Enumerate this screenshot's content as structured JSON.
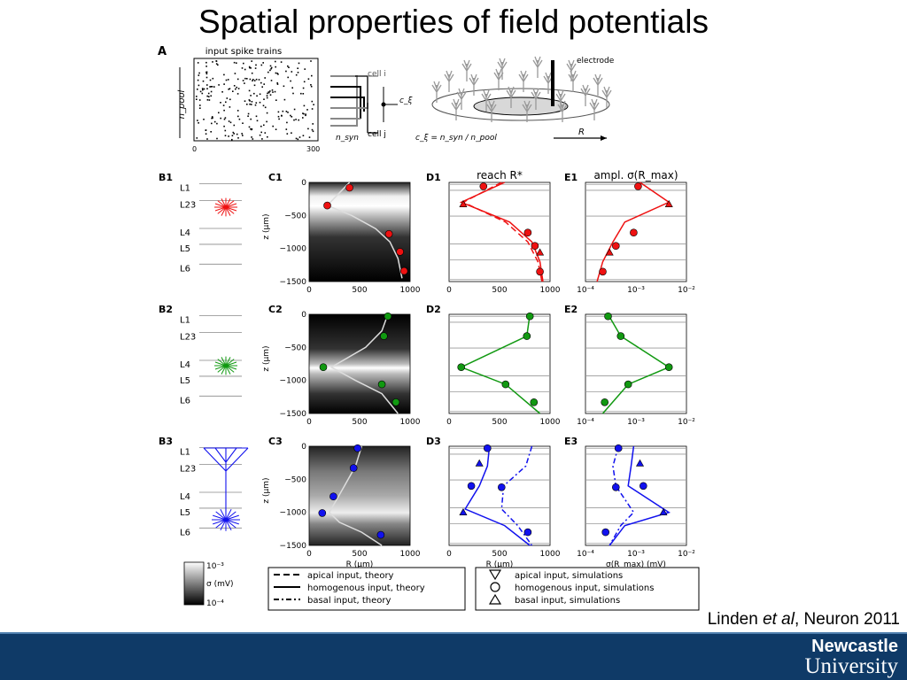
{
  "slide": {
    "title": "Spatial properties of field potentials",
    "citation_prefix": "Linden ",
    "citation_em": "et al",
    "citation_suffix": ", Neuron 2011"
  },
  "logo": {
    "line1": "Newcastle",
    "line2": "University"
  },
  "colors": {
    "row1": "#ee1111",
    "row2": "#119911",
    "row3": "#1111ee",
    "footer": "#0f3a67"
  },
  "panel_a": {
    "label": "A",
    "raster_title": "input spike trains",
    "axis_label": "n_pool",
    "tick_start": "0",
    "tick_end": "300",
    "cell_i": "cell i",
    "cell_j": "cell j",
    "n_syn": "n_syn",
    "c_xi": "c_ξ",
    "formula": "c_ξ = n_syn / n_pool",
    "electrode": "electrode",
    "r_label": "R"
  },
  "panel_b": {
    "labels": [
      "B1",
      "B2",
      "B3"
    ],
    "layers": [
      "L1",
      "L23",
      "L4",
      "L5",
      "L6"
    ]
  },
  "panel_c": {
    "labels": [
      "C1",
      "C2",
      "C3"
    ],
    "y_axis_label": "z (μm)",
    "y_ticks": [
      "0",
      "−500",
      "−1000",
      "−1500"
    ],
    "x_ticks": [
      "0",
      "500",
      "1000"
    ],
    "x_axis_label": "R (μm)"
  },
  "panel_d": {
    "labels": [
      "D1",
      "D2",
      "D3"
    ],
    "title": "reach R*",
    "x_ticks": [
      "0",
      "500",
      "1000"
    ],
    "x_axis_label": "R (μm)"
  },
  "panel_e": {
    "labels": [
      "E1",
      "E2",
      "E3"
    ],
    "title": "ampl. σ(R_max)",
    "x_ticks": [
      "10⁻⁴",
      "10⁻³",
      "10⁻²"
    ],
    "x_axis_label": "σ(R_max) (mV)"
  },
  "colorbar": {
    "top": "10⁻³",
    "label": "σ (mV)",
    "bottom": "10⁻⁴"
  },
  "legend": {
    "theory": [
      "apical input, theory",
      "homogenous input, theory",
      "basal input, theory"
    ],
    "simulations": [
      "apical input, simulations",
      "homogenous input, simulations",
      "basal input, simulations"
    ]
  },
  "chart_data": [
    {
      "type": "line",
      "panel": "C1",
      "xlabel": "",
      "ylabel": "z (μm)",
      "xlim": [
        0,
        1000
      ],
      "ylim": [
        -1500,
        0
      ],
      "series": [
        {
          "x": [
            400,
            180,
            420,
            660,
            800,
            880,
            920
          ],
          "y": [
            0,
            -350,
            -500,
            -700,
            -900,
            -1150,
            -1450
          ]
        }
      ],
      "points": {
        "x": [
          400,
          180,
          790,
          900,
          940
        ],
        "y": [
          -80,
          -350,
          -780,
          -1050,
          -1340
        ]
      }
    },
    {
      "type": "line",
      "panel": "C2",
      "xlabel": "",
      "ylabel": "z (μm)",
      "xlim": [
        0,
        1000
      ],
      "ylim": [
        -1500,
        0
      ],
      "series": [
        {
          "x": [
            780,
            720,
            560,
            220,
            460,
            720,
            880
          ],
          "y": [
            0,
            -250,
            -500,
            -800,
            -1000,
            -1200,
            -1500
          ]
        }
      ],
      "points": {
        "x": [
          780,
          740,
          140,
          720,
          860
        ],
        "y": [
          -30,
          -330,
          -800,
          -1060,
          -1330
        ]
      }
    },
    {
      "type": "line",
      "panel": "C3",
      "xlabel": "R (μm)",
      "ylabel": "z (μm)",
      "xlim": [
        0,
        1000
      ],
      "ylim": [
        -1500,
        0
      ],
      "series": [
        {
          "x": [
            520,
            460,
            350,
            200,
            300,
            520,
            720
          ],
          "y": [
            0,
            -300,
            -600,
            -1000,
            -1150,
            -1300,
            -1500
          ]
        }
      ],
      "points": {
        "x": [
          480,
          440,
          240,
          130,
          710
        ],
        "y": [
          -30,
          -330,
          -760,
          -1010,
          -1340
        ]
      }
    },
    {
      "type": "line",
      "panel": "D1",
      "title": "reach R*",
      "xlim": [
        0,
        1000
      ],
      "ylim": [
        -1500,
        0
      ],
      "series": [
        {
          "x": [
            550,
            120,
            600,
            820,
            900,
            930
          ],
          "y": [
            0,
            -300,
            -600,
            -900,
            -1200,
            -1500
          ]
        },
        {
          "x": [
            520,
            140,
            560,
            780,
            880,
            920
          ],
          "y": [
            0,
            -300,
            -600,
            -900,
            -1200,
            -1500
          ]
        }
      ],
      "points": {
        "x": [
          340,
          140,
          780,
          850,
          900,
          900
        ],
        "y": [
          -60,
          -330,
          -760,
          -960,
          -1060,
          -1350
        ]
      }
    },
    {
      "type": "line",
      "panel": "D2",
      "xlim": [
        0,
        1000
      ],
      "ylim": [
        -1500,
        0
      ],
      "series": [
        {
          "x": [
            800,
            770,
            120,
            560,
            900
          ],
          "y": [
            0,
            -330,
            -800,
            -1060,
            -1500
          ]
        }
      ],
      "points": {
        "x": [
          800,
          770,
          120,
          560,
          840
        ],
        "y": [
          -30,
          -330,
          -800,
          -1060,
          -1330
        ]
      }
    },
    {
      "type": "line",
      "panel": "D3",
      "xlabel": "R (μm)",
      "xlim": [
        0,
        1000
      ],
      "ylim": [
        -1500,
        0
      ],
      "series": [
        {
          "x": [
            400,
            380,
            300,
            160,
            550,
            800
          ],
          "y": [
            0,
            -300,
            -600,
            -950,
            -1200,
            -1500
          ]
        },
        {
          "x": [
            820,
            760,
            540,
            520,
            680,
            820
          ],
          "y": [
            0,
            -300,
            -600,
            -950,
            -1200,
            -1500
          ]
        }
      ],
      "points": {
        "x": [
          380,
          300,
          220,
          520,
          140,
          780
        ],
        "y": [
          -30,
          -260,
          -600,
          -620,
          -1000,
          -1300
        ]
      }
    },
    {
      "type": "line",
      "panel": "E1",
      "xlim": [
        0.0001,
        0.01
      ],
      "ylim": [
        -1500,
        0
      ],
      "series": [
        {
          "x": [
            0.0012,
            0.0045,
            0.0006,
            0.00035,
            0.00022,
            0.00017
          ],
          "y": [
            0,
            -300,
            -600,
            -900,
            -1200,
            -1500
          ]
        }
      ],
      "points": {
        "x": [
          0.0011,
          0.0045,
          0.0009,
          0.0004,
          0.0003,
          0.00022
        ],
        "y": [
          -60,
          -330,
          -760,
          -960,
          -1060,
          -1350
        ]
      }
    },
    {
      "type": "line",
      "panel": "E2",
      "xlim": [
        0.0001,
        0.01
      ],
      "ylim": [
        -1500,
        0
      ],
      "series": [
        {
          "x": [
            0.00028,
            0.0005,
            0.0045,
            0.0007,
            0.00022
          ],
          "y": [
            0,
            -330,
            -800,
            -1060,
            -1500
          ]
        }
      ],
      "points": {
        "x": [
          0.00028,
          0.0005,
          0.0045,
          0.0007,
          0.00024
        ],
        "y": [
          -30,
          -330,
          -800,
          -1060,
          -1330
        ]
      }
    },
    {
      "type": "line",
      "panel": "E3",
      "xlabel": "σ(R_max) (mV)",
      "xlim": [
        0.0001,
        0.01
      ],
      "ylim": [
        -1500,
        0
      ],
      "series": [
        {
          "x": [
            0.0009,
            0.0008,
            0.0007,
            0.0045,
            0.0006,
            0.0003
          ],
          "y": [
            0,
            -300,
            -600,
            -1000,
            -1200,
            -1500
          ]
        },
        {
          "x": [
            0.00045,
            0.00035,
            0.0004,
            0.0009,
            0.0005,
            0.0003
          ],
          "y": [
            0,
            -300,
            -600,
            -1000,
            -1200,
            -1500
          ]
        }
      ],
      "points": {
        "x": [
          0.00045,
          0.0012,
          0.0014,
          0.0004,
          0.0035,
          0.00025
        ],
        "y": [
          -30,
          -260,
          -600,
          -620,
          -1000,
          -1300
        ]
      }
    }
  ]
}
